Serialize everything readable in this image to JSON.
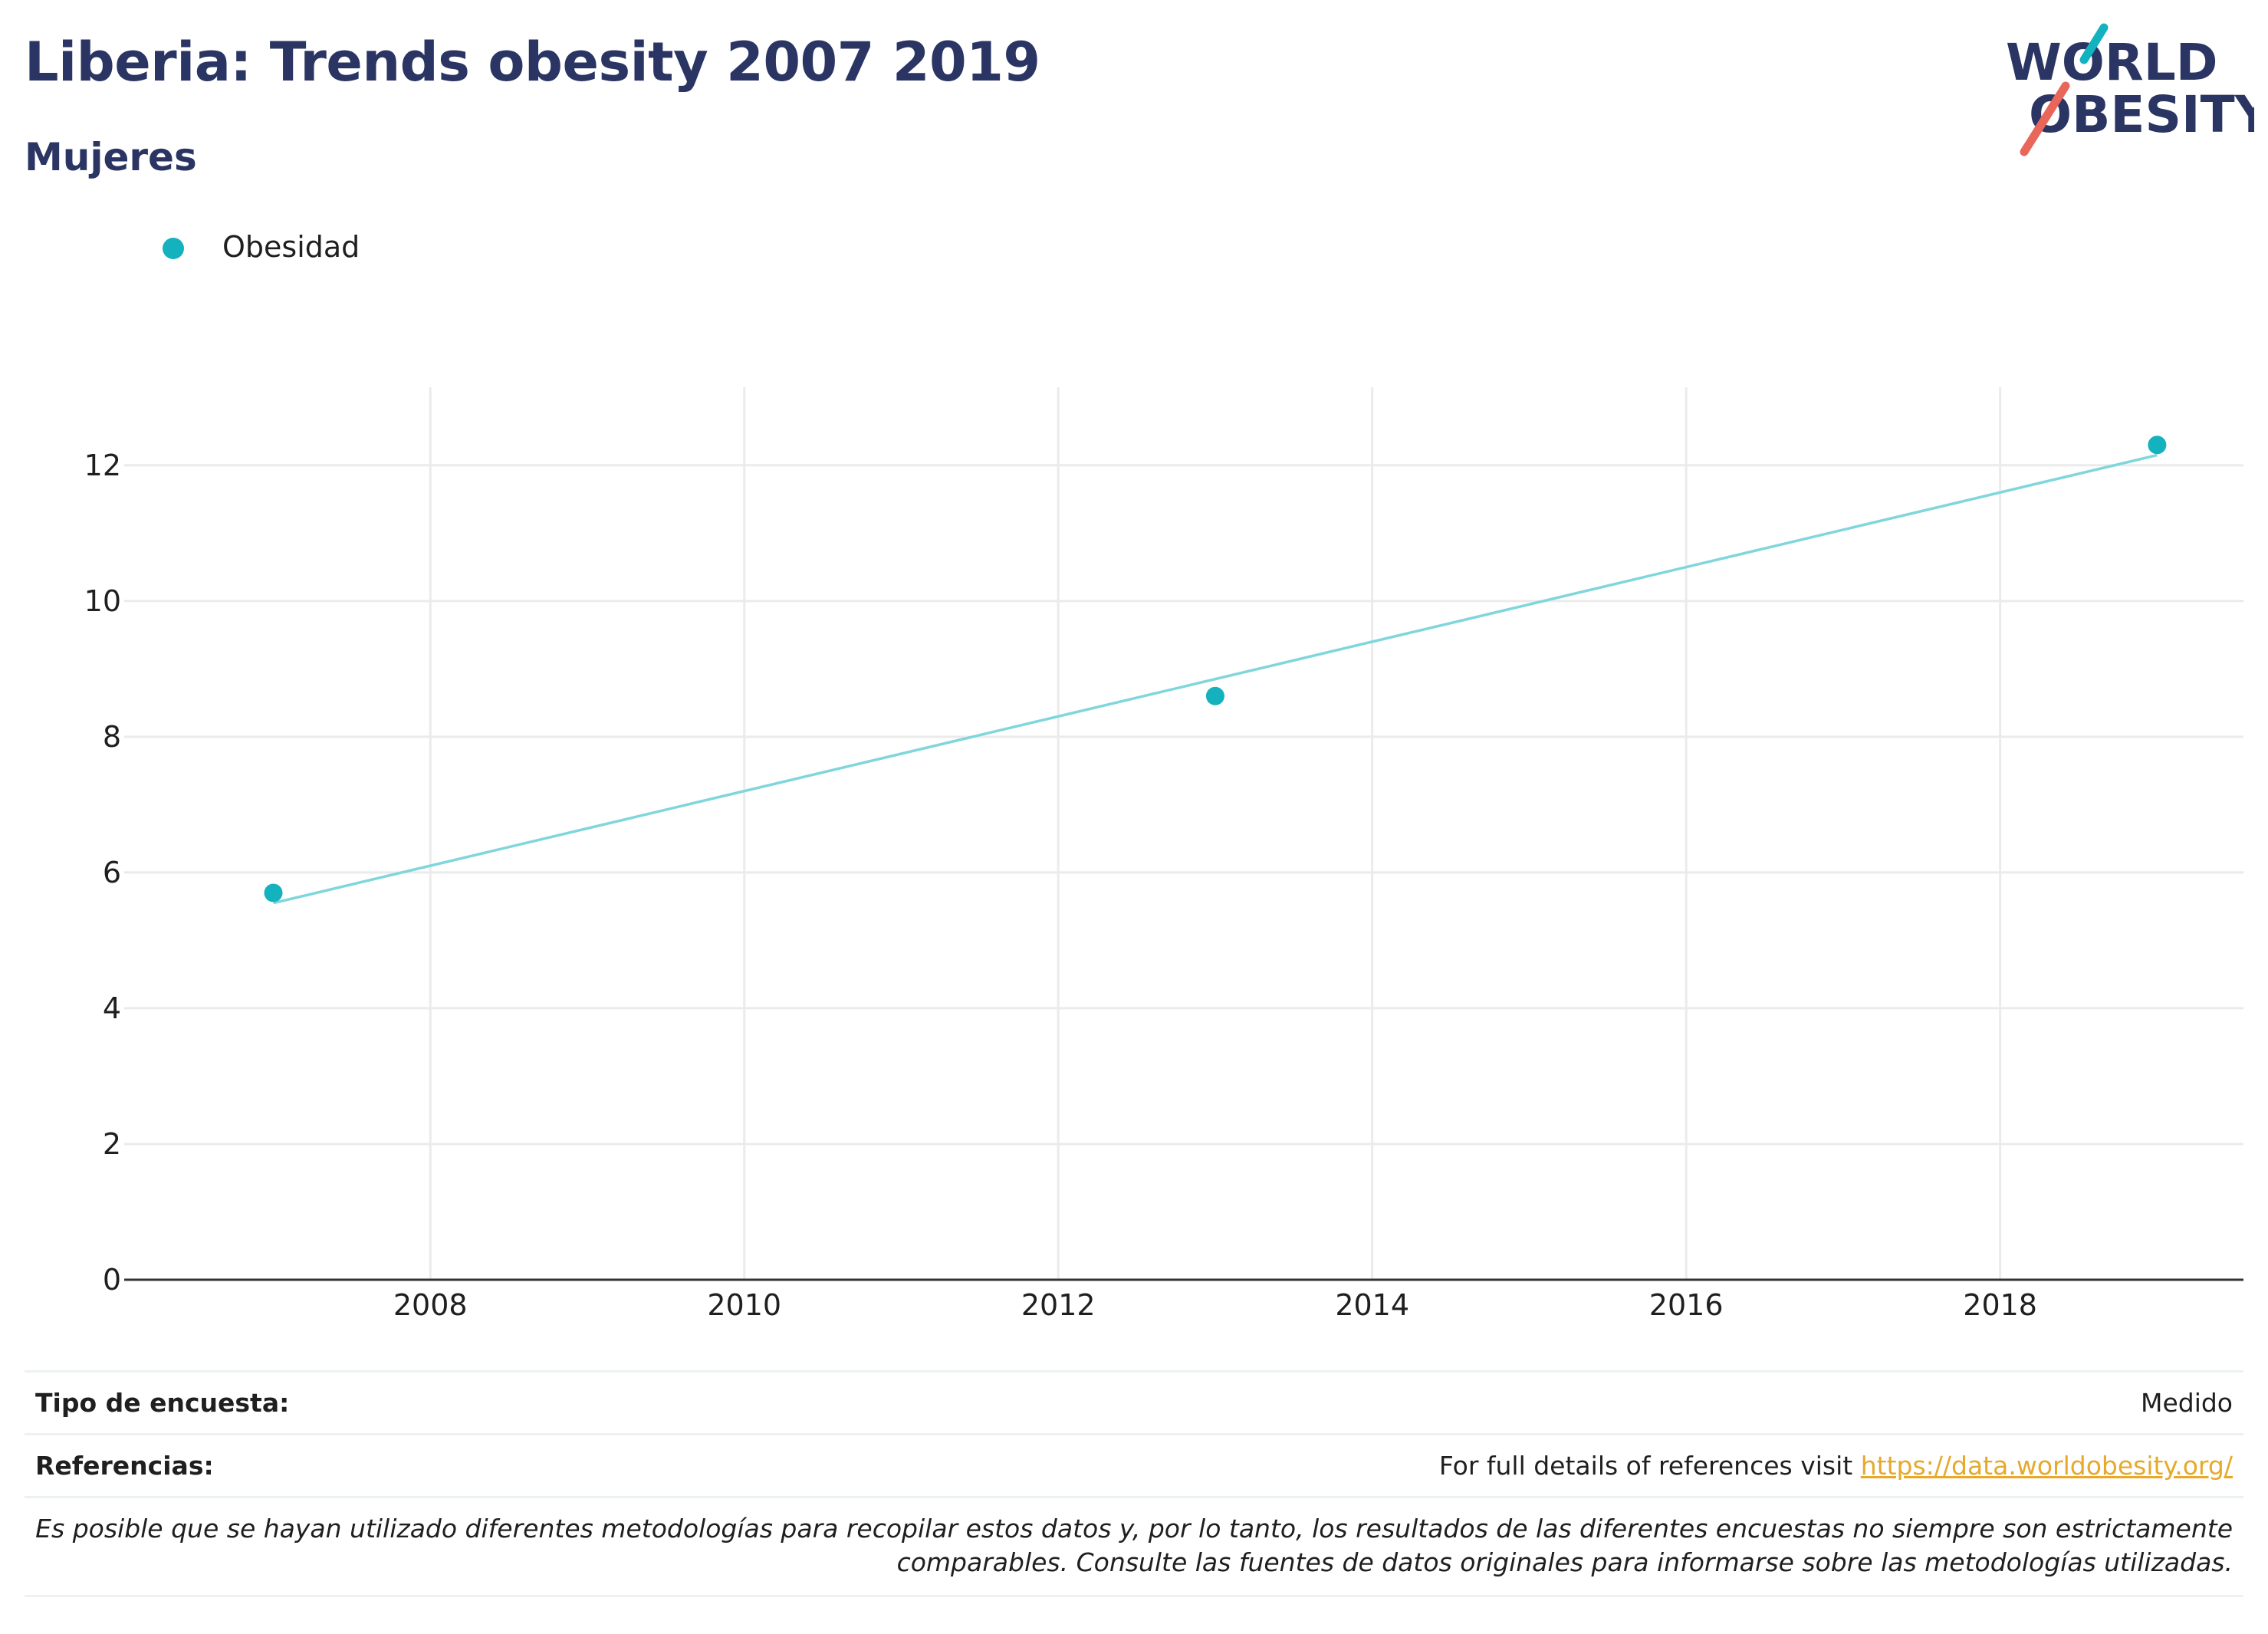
{
  "header": {
    "title": "Liberia: Trends obesity 2007 2019",
    "subtitle": "Mujeres"
  },
  "logo": {
    "line1": "WORLD",
    "line2": "OBESITY",
    "colors": {
      "text": "#2b3563",
      "teal_slash": "#14b1be",
      "coral_slash": "#e8665a"
    }
  },
  "legend": {
    "label": "Obesidad"
  },
  "colors": {
    "points": "#14b1be",
    "trend_line": "#7fd6dc",
    "grid": "#ebebeb",
    "axis": "#333333",
    "link": "#e6a92a",
    "title": "#2b3563"
  },
  "chart_data": {
    "type": "scatter",
    "title": "Liberia: Trends obesity 2007 2019",
    "subtitle": "Mujeres",
    "series": [
      {
        "name": "Obesidad",
        "x": [
          2007,
          2013,
          2019
        ],
        "y": [
          5.7,
          8.6,
          12.3
        ]
      }
    ],
    "trendline": {
      "x": [
        2007,
        2019
      ],
      "y": [
        5.55,
        12.15
      ]
    },
    "x_ticks": [
      2008,
      2010,
      2012,
      2014,
      2016,
      2018
    ],
    "y_ticks": [
      0,
      2,
      4,
      6,
      8,
      10,
      12
    ],
    "xlim": [
      2006.05,
      2019.55
    ],
    "ylim": [
      0,
      13.15
    ],
    "grid": true,
    "legend_position": "top-left"
  },
  "info": {
    "survey_type_label": "Tipo de encuesta:",
    "survey_type_value": "Medido",
    "references_label": "Referencias:",
    "references_text": "For full details of references visit ",
    "references_link": "https://data.worldobesity.org/",
    "note_line1": "Es posible que se hayan utilizado diferentes metodologías para recopilar estos datos y, por lo tanto, los resultados de las diferentes encuestas no siempre son estrictamente",
    "note_line2": "comparables. Consulte las fuentes de datos originales para informarse sobre las metodologías utilizadas."
  }
}
